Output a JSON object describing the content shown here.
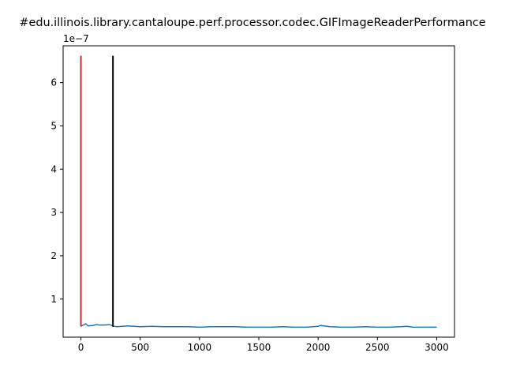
{
  "chart_data": {
    "type": "line",
    "title": "#edu.illinois.library.cantaloupe.perf.processor.codec.GIFImageReaderPerformance",
    "xlabel": "",
    "ylabel": "",
    "y_offset_label": "1e−7",
    "xlim": [
      -150,
      3150
    ],
    "ylim": [
      0.12,
      6.85
    ],
    "x_ticks": [
      0,
      500,
      1000,
      1500,
      2000,
      2500,
      3000
    ],
    "x_tick_labels": [
      "0",
      "500",
      "1000",
      "1500",
      "2000",
      "2500",
      "3000"
    ],
    "y_ticks": [
      1,
      2,
      3,
      4,
      5,
      6
    ],
    "y_tick_labels": [
      "1",
      "2",
      "3",
      "4",
      "5",
      "6"
    ],
    "grid": false,
    "series": [
      {
        "color": "#1f77b4",
        "x": [
          0,
          20,
          40,
          60,
          100,
          130,
          160,
          200,
          240,
          270,
          300,
          350,
          400,
          500,
          600,
          700,
          800,
          900,
          1000,
          1100,
          1200,
          1300,
          1400,
          1500,
          1600,
          1700,
          1800,
          1900,
          2000,
          2020,
          2100,
          2200,
          2300,
          2400,
          2500,
          2600,
          2700,
          2750,
          2800,
          2900,
          3000
        ],
        "y": [
          0.37,
          0.4,
          0.43,
          0.38,
          0.39,
          0.41,
          0.4,
          0.4,
          0.41,
          0.38,
          0.36,
          0.37,
          0.38,
          0.36,
          0.37,
          0.36,
          0.36,
          0.36,
          0.35,
          0.36,
          0.36,
          0.36,
          0.35,
          0.35,
          0.35,
          0.36,
          0.35,
          0.35,
          0.37,
          0.39,
          0.36,
          0.35,
          0.35,
          0.36,
          0.35,
          0.35,
          0.36,
          0.37,
          0.35,
          0.35,
          0.35
        ]
      }
    ],
    "vertical_lines": [
      {
        "color": "#d62728",
        "x": 0,
        "y_from": 0.37,
        "y_to": 6.62
      },
      {
        "color": "#000000",
        "x": 270,
        "y_from": 0.36,
        "y_to": 6.62
      }
    ]
  }
}
